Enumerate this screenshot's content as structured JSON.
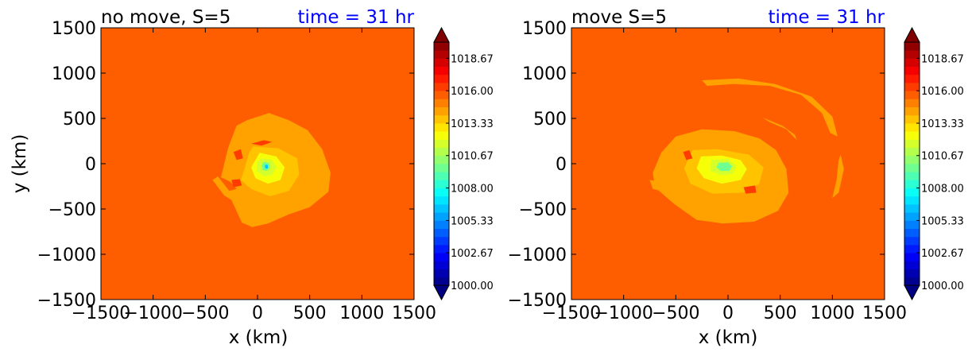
{
  "chart_data": [
    {
      "type": "heatmap",
      "title_left": "no move, S=5",
      "title_right": "time = 31 hr",
      "xlabel": "x (km)",
      "ylabel": "y (km)",
      "xlim": [
        -1500,
        1500
      ],
      "ylim": [
        -1500,
        1500
      ],
      "x_ticks": [
        -1500,
        -1000,
        -500,
        0,
        500,
        1000,
        1500
      ],
      "y_ticks": [
        -1500,
        -1000,
        -500,
        0,
        500,
        1000,
        1500
      ],
      "x_tick_labels": [
        "−1500",
        "−1000",
        "−500",
        "0",
        "500",
        "1000",
        "1500"
      ],
      "y_tick_labels": [
        "−1500",
        "−1000",
        "−500",
        "0",
        "500",
        "1000",
        "1500"
      ],
      "background_level": 1015.8,
      "features": [
        {
          "kind": "band",
          "level": 1014.4,
          "poly": [
            [
              -320,
              -350
            ],
            [
              -250,
              -400
            ],
            [
              -150,
              -650
            ],
            [
              -50,
              -700
            ],
            [
              100,
              -660
            ],
            [
              300,
              -560
            ],
            [
              500,
              -480
            ],
            [
              680,
              -310
            ],
            [
              700,
              -100
            ],
            [
              620,
              160
            ],
            [
              480,
              370
            ],
            [
              300,
              480
            ],
            [
              110,
              560
            ],
            [
              -100,
              480
            ],
            [
              -200,
              420
            ],
            [
              -280,
              180
            ],
            [
              -350,
              -150
            ],
            [
              -260,
              -200
            ],
            [
              -200,
              -280
            ],
            [
              -270,
              -300
            ],
            [
              -380,
              -140
            ],
            [
              -430,
              -180
            ]
          ]
        },
        {
          "kind": "band",
          "level": 1013.6,
          "poly": [
            [
              -40,
              190
            ],
            [
              200,
              170
            ],
            [
              380,
              60
            ],
            [
              400,
              -120
            ],
            [
              300,
              -300
            ],
            [
              120,
              -360
            ],
            [
              -60,
              -280
            ],
            [
              -160,
              -180
            ],
            [
              -120,
              -40
            ],
            [
              -80,
              120
            ]
          ]
        },
        {
          "kind": "band",
          "level": 1012.6,
          "poly": [
            [
              20,
              120
            ],
            [
              180,
              80
            ],
            [
              260,
              -40
            ],
            [
              220,
              -180
            ],
            [
              100,
              -220
            ],
            [
              -20,
              -160
            ],
            [
              -60,
              -40
            ]
          ]
        },
        {
          "kind": "band",
          "level": 1011.5,
          "poly": [
            [
              40,
              60
            ],
            [
              140,
              40
            ],
            [
              180,
              -40
            ],
            [
              140,
              -120
            ],
            [
              60,
              -140
            ],
            [
              -10,
              -80
            ],
            [
              0,
              20
            ]
          ]
        },
        {
          "kind": "band",
          "level": 1009.5,
          "poly": [
            [
              60,
              20
            ],
            [
              110,
              10
            ],
            [
              120,
              -40
            ],
            [
              90,
              -80
            ],
            [
              50,
              -70
            ],
            [
              40,
              -20
            ]
          ]
        },
        {
          "kind": "band",
          "level": 1006.5,
          "poly": [
            [
              75,
              -10
            ],
            [
              100,
              -15
            ],
            [
              100,
              -50
            ],
            [
              80,
              -55
            ],
            [
              70,
              -35
            ]
          ]
        },
        {
          "kind": "band",
          "level": 1016.6,
          "poly": [
            [
              -230,
              130
            ],
            [
              -160,
              160
            ],
            [
              -140,
              60
            ],
            [
              -200,
              40
            ]
          ]
        },
        {
          "kind": "band",
          "level": 1016.6,
          "poly": [
            [
              -250,
              -180
            ],
            [
              -170,
              -170
            ],
            [
              -150,
              -240
            ],
            [
              -230,
              -260
            ]
          ]
        },
        {
          "kind": "band",
          "level": 1016.6,
          "poly": [
            [
              -60,
              220
            ],
            [
              60,
              260
            ],
            [
              140,
              240
            ],
            [
              40,
              200
            ]
          ]
        }
      ]
    },
    {
      "type": "heatmap",
      "title_left": "move S=5",
      "title_right": "time = 31 hr",
      "xlabel": "x (km)",
      "ylabel": "",
      "xlim": [
        -1500,
        1500
      ],
      "ylim": [
        -1500,
        1500
      ],
      "x_ticks": [
        -1500,
        -1000,
        -500,
        0,
        500,
        1000,
        1500
      ],
      "y_ticks": [
        -1500,
        -1000,
        -500,
        0,
        500,
        1000,
        1500
      ],
      "x_tick_labels": [
        "−1500",
        "−1000",
        "−500",
        "0",
        "500",
        "1000",
        "1500"
      ],
      "y_tick_labels": [
        "−1500",
        "−1000",
        "−500",
        "0",
        "500",
        "1000",
        "1500"
      ],
      "background_level": 1015.8,
      "features": [
        {
          "kind": "band",
          "level": 1014.4,
          "poly": [
            [
              -700,
              -260
            ],
            [
              -520,
              -440
            ],
            [
              -300,
              -620
            ],
            [
              -50,
              -660
            ],
            [
              250,
              -640
            ],
            [
              480,
              -520
            ],
            [
              580,
              -320
            ],
            [
              560,
              -60
            ],
            [
              460,
              150
            ],
            [
              300,
              280
            ],
            [
              60,
              360
            ],
            [
              -250,
              380
            ],
            [
              -500,
              300
            ],
            [
              -640,
              120
            ],
            [
              -720,
              -100
            ]
          ]
        },
        {
          "kind": "band",
          "level": 1014.4,
          "poly": [
            [
              -250,
              920
            ],
            [
              100,
              940
            ],
            [
              450,
              880
            ],
            [
              800,
              740
            ],
            [
              1000,
              520
            ],
            [
              1050,
              300
            ],
            [
              980,
              340
            ],
            [
              900,
              560
            ],
            [
              700,
              760
            ],
            [
              400,
              860
            ],
            [
              50,
              880
            ],
            [
              -200,
              860
            ]
          ]
        },
        {
          "kind": "band",
          "level": 1014.4,
          "poly": [
            [
              330,
              510
            ],
            [
              520,
              420
            ],
            [
              640,
              320
            ],
            [
              680,
              200
            ],
            [
              660,
              260
            ],
            [
              560,
              380
            ],
            [
              400,
              460
            ]
          ]
        },
        {
          "kind": "band",
          "level": 1014.4,
          "poly": [
            [
              1080,
              100
            ],
            [
              1110,
              -60
            ],
            [
              1060,
              -320
            ],
            [
              1000,
              -380
            ],
            [
              1040,
              -180
            ],
            [
              1060,
              40
            ]
          ]
        },
        {
          "kind": "band",
          "level": 1014.4,
          "poly": [
            [
              -750,
              -180
            ],
            [
              -650,
              -200
            ],
            [
              -640,
              -300
            ],
            [
              -720,
              -280
            ]
          ]
        },
        {
          "kind": "band",
          "level": 1013.6,
          "poly": [
            [
              -340,
              150
            ],
            [
              -100,
              160
            ],
            [
              200,
              100
            ],
            [
              340,
              -40
            ],
            [
              300,
              -220
            ],
            [
              140,
              -320
            ],
            [
              -150,
              -330
            ],
            [
              -360,
              -220
            ],
            [
              -420,
              -50
            ]
          ]
        },
        {
          "kind": "band",
          "level": 1012.6,
          "poly": [
            [
              -260,
              80
            ],
            [
              -60,
              90
            ],
            [
              120,
              40
            ],
            [
              180,
              -60
            ],
            [
              120,
              -180
            ],
            [
              -60,
              -220
            ],
            [
              -230,
              -160
            ],
            [
              -300,
              -50
            ]
          ]
        },
        {
          "kind": "band",
          "level": 1011.5,
          "poly": [
            [
              -160,
              40
            ],
            [
              0,
              50
            ],
            [
              80,
              -20
            ],
            [
              50,
              -110
            ],
            [
              -60,
              -130
            ],
            [
              -170,
              -80
            ]
          ]
        },
        {
          "kind": "band",
          "level": 1009.8,
          "poly": [
            [
              -90,
              10
            ],
            [
              0,
              15
            ],
            [
              40,
              -30
            ],
            [
              10,
              -80
            ],
            [
              -70,
              -80
            ],
            [
              -110,
              -40
            ]
          ]
        },
        {
          "kind": "band",
          "level": 1016.6,
          "poly": [
            [
              -430,
              130
            ],
            [
              -370,
              150
            ],
            [
              -340,
              60
            ],
            [
              -400,
              40
            ]
          ]
        },
        {
          "kind": "band",
          "level": 1016.6,
          "poly": [
            [
              150,
              -260
            ],
            [
              260,
              -240
            ],
            [
              270,
              -320
            ],
            [
              170,
              -330
            ]
          ]
        }
      ]
    }
  ],
  "colorbar": {
    "min": 1000.0,
    "max": 1020.0,
    "levels": 30,
    "tick_values": [
      1000.0,
      1002.67,
      1005.33,
      1008.0,
      1010.67,
      1013.33,
      1016.0,
      1018.67
    ],
    "tick_labels": [
      "1000.00",
      "1002.67",
      "1005.33",
      "1008.00",
      "1010.67",
      "1013.33",
      "1016.00",
      "1018.67"
    ],
    "colormap": "jet",
    "extend": "both"
  }
}
